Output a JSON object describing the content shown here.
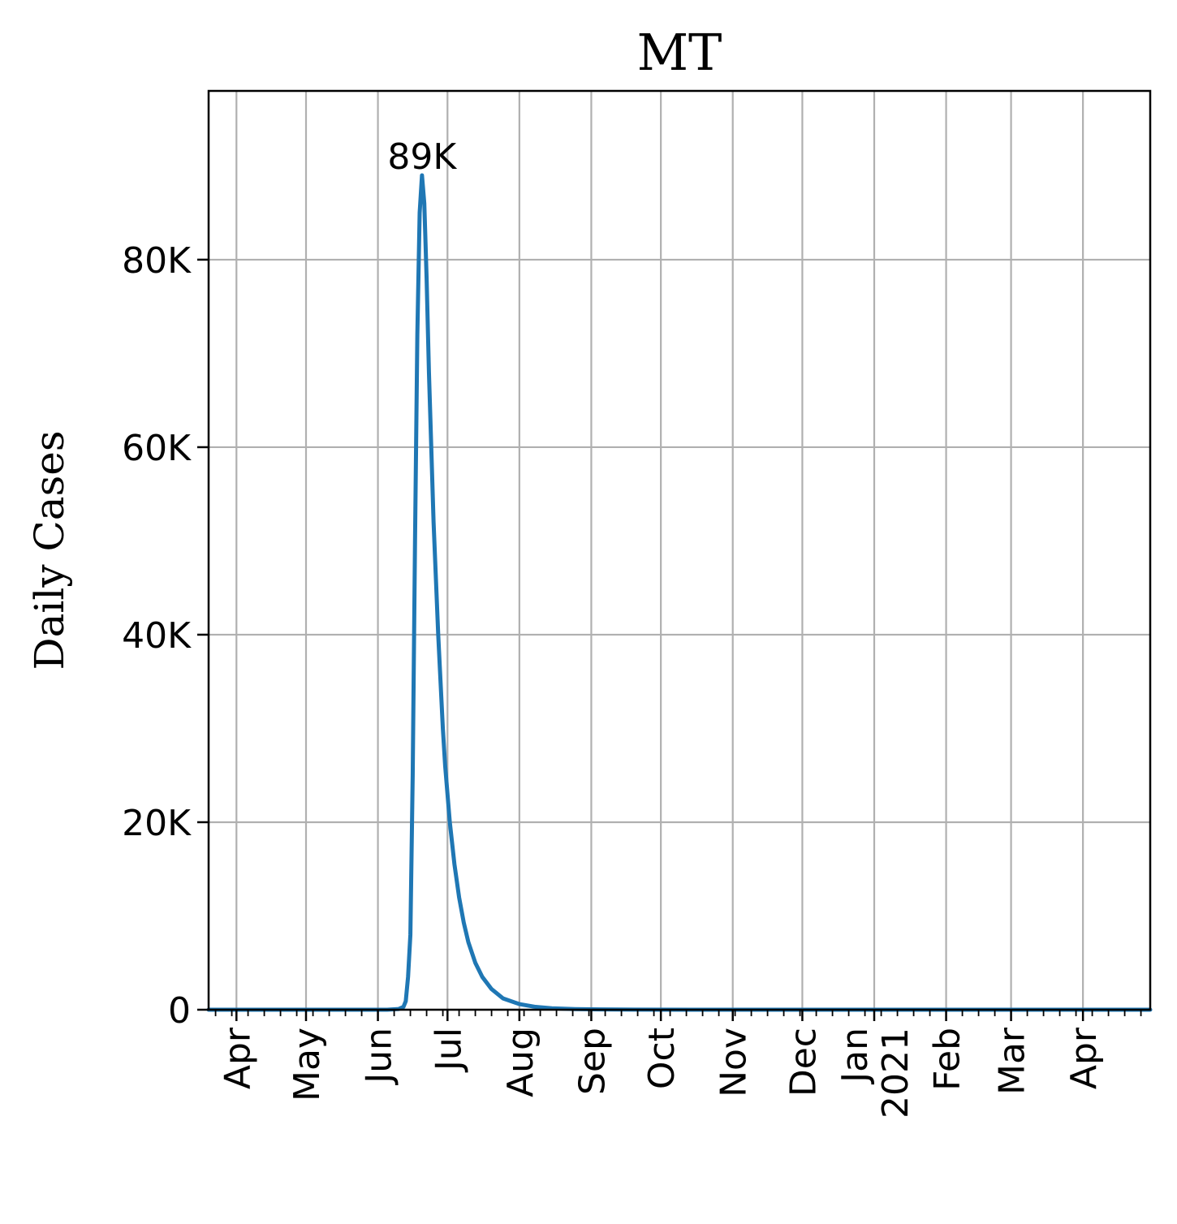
{
  "chart_data": {
    "type": "line",
    "title": "MT",
    "ylabel": "Daily Cases",
    "xlabel": "",
    "grid": true,
    "xlim": [
      "2020-03-20",
      "2021-04-30"
    ],
    "ylim": [
      0,
      98000
    ],
    "yticks": [
      {
        "value": 0,
        "label": "0"
      },
      {
        "value": 20000,
        "label": "20K"
      },
      {
        "value": 40000,
        "label": "40K"
      },
      {
        "value": 60000,
        "label": "60K"
      },
      {
        "value": 80000,
        "label": "80K"
      }
    ],
    "xticks": [
      {
        "date": "2020-04-01",
        "label": "Apr"
      },
      {
        "date": "2020-05-01",
        "label": "May"
      },
      {
        "date": "2020-06-01",
        "label": "Jun"
      },
      {
        "date": "2020-07-01",
        "label": "Jul"
      },
      {
        "date": "2020-08-01",
        "label": "Aug"
      },
      {
        "date": "2020-09-01",
        "label": "Sep"
      },
      {
        "date": "2020-10-01",
        "label": "Oct"
      },
      {
        "date": "2020-11-01",
        "label": "Nov"
      },
      {
        "date": "2020-12-01",
        "label": "Dec"
      },
      {
        "date": "2021-01-01",
        "label": "Jan\n2021"
      },
      {
        "date": "2021-02-01",
        "label": "Feb"
      },
      {
        "date": "2021-03-01",
        "label": "Mar"
      },
      {
        "date": "2021-04-01",
        "label": "Apr"
      }
    ],
    "series": [
      {
        "color": "#1f77b4",
        "x": [
          "2020-03-20",
          "2020-04-15",
          "2020-05-15",
          "2020-06-05",
          "2020-06-10",
          "2020-06-12",
          "2020-06-13",
          "2020-06-14",
          "2020-06-15",
          "2020-06-16",
          "2020-06-17",
          "2020-06-18",
          "2020-06-19",
          "2020-06-20",
          "2020-06-21",
          "2020-06-22",
          "2020-06-23",
          "2020-06-24",
          "2020-06-25",
          "2020-06-26",
          "2020-06-27",
          "2020-06-28",
          "2020-06-29",
          "2020-06-30",
          "2020-07-02",
          "2020-07-04",
          "2020-07-06",
          "2020-07-08",
          "2020-07-10",
          "2020-07-13",
          "2020-07-16",
          "2020-07-20",
          "2020-07-25",
          "2020-08-01",
          "2020-08-08",
          "2020-08-15",
          "2020-08-25",
          "2020-09-05",
          "2020-09-20",
          "2020-10-15",
          "2020-12-01",
          "2021-02-01",
          "2021-04-30"
        ],
        "y": [
          0,
          0,
          0,
          0,
          80,
          300,
          900,
          3500,
          8000,
          25000,
          50000,
          72000,
          85000,
          89000,
          86000,
          78000,
          68000,
          60000,
          52000,
          46000,
          40000,
          35000,
          30000,
          26000,
          20000,
          15500,
          12000,
          9300,
          7200,
          5000,
          3500,
          2200,
          1200,
          600,
          300,
          150,
          70,
          30,
          10,
          0,
          0,
          0,
          0
        ]
      }
    ],
    "annotations": [
      {
        "text": "89K",
        "x": "2020-06-20",
        "y": 89000
      }
    ]
  }
}
